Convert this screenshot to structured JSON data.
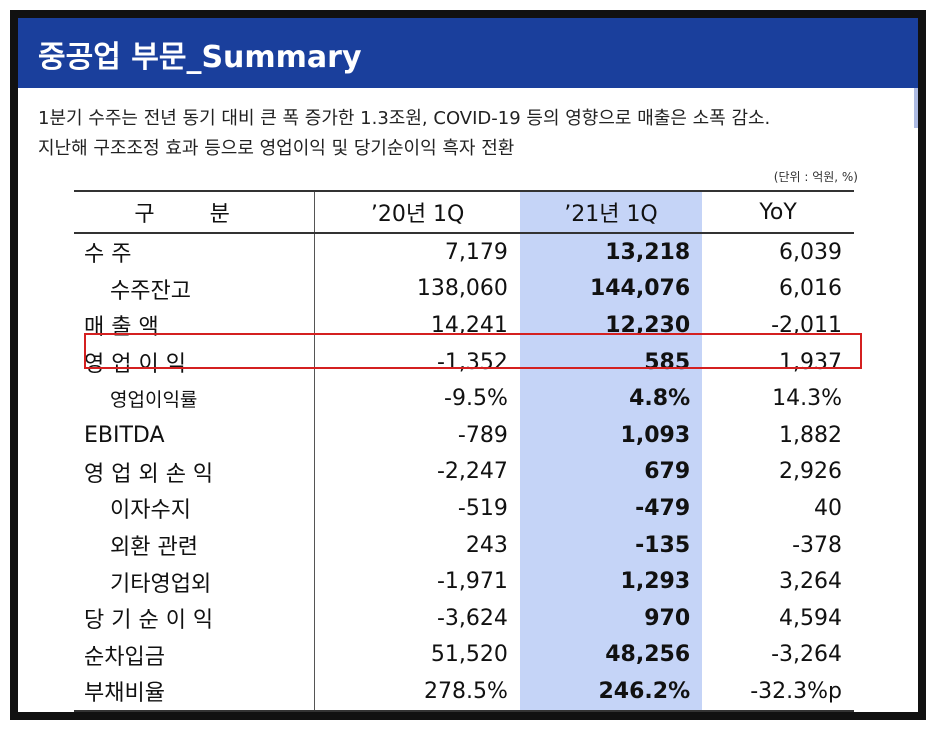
{
  "header": {
    "title": "중공업 부문_Summary"
  },
  "description": [
    "1분기 수주는 전년 동기 대비 큰 폭 증가한 1.3조원, COVID-19 등의 영향으로 매출은 소폭 감소.",
    "지난해 구조조정 효과 등으로 영업이익 및 당기순이익 흑자 전환"
  ],
  "unit_note": "(단위 : 억원, %)",
  "table": {
    "headers": [
      "구  분",
      "’20년 1Q",
      "’21년 1Q",
      "YoY"
    ],
    "rows": [
      {
        "label": "수 주",
        "level": "top",
        "v20": "7,179",
        "v21": "13,218",
        "yoy": "6,039"
      },
      {
        "label": "수주잔고",
        "level": "sub",
        "v20": "138,060",
        "v21": "144,076",
        "yoy": "6,016"
      },
      {
        "label": "매 출 액",
        "level": "top",
        "v20": "14,241",
        "v21": "12,230",
        "yoy": "-2,011"
      },
      {
        "label": "영 업 이 익",
        "level": "top",
        "v20": "-1,352",
        "v21": "585",
        "yoy": "1,937"
      },
      {
        "label": "영업이익률",
        "level": "subsmall",
        "v20": "-9.5%",
        "v21": "4.8%",
        "yoy": "14.3%"
      },
      {
        "label": "EBITDA",
        "level": "top",
        "v20": "-789",
        "v21": "1,093",
        "yoy": "1,882"
      },
      {
        "label": "영 업 외 손 익",
        "level": "top",
        "v20": "-2,247",
        "v21": "679",
        "yoy": "2,926"
      },
      {
        "label": "이자수지",
        "level": "sub",
        "v20": "-519",
        "v21": "-479",
        "yoy": "40"
      },
      {
        "label": "외환 관련",
        "level": "sub",
        "v20": "243",
        "v21": "-135",
        "yoy": "-378"
      },
      {
        "label": "기타영업외",
        "level": "sub",
        "v20": "-1,971",
        "v21": "1,293",
        "yoy": "3,264"
      },
      {
        "label": "당 기 순 이 익",
        "level": "top",
        "v20": "-3,624",
        "v21": "970",
        "yoy": "4,594"
      },
      {
        "label": "순차입금",
        "level": "top",
        "v20": "51,520",
        "v21": "48,256",
        "yoy": "-3,264"
      },
      {
        "label": "부채비율",
        "level": "top",
        "v20": "278.5%",
        "v21": "246.2%",
        "yoy": "-32.3%p"
      }
    ]
  },
  "colors": {
    "title_bar": "#1a3f9c",
    "highlight_column": "#c5d4f7",
    "highlight_box": "#d42020"
  }
}
